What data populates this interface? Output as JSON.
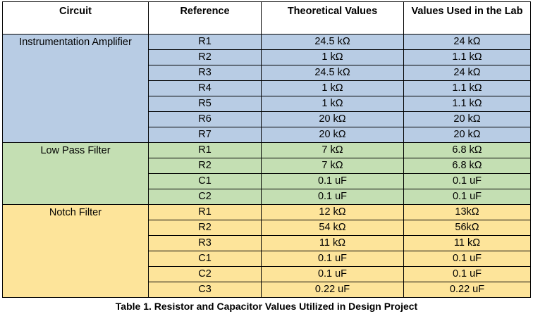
{
  "headers": {
    "circuit": "Circuit",
    "reference": "Reference",
    "theoretical": "Theoretical Values",
    "lab": "Values Used in the Lab"
  },
  "groups": [
    {
      "name": "Instrumentation Amplifier",
      "color": "#b8cce4",
      "rows": [
        {
          "ref": "R1",
          "theoretical": "24.5 kΩ",
          "lab": "24 kΩ"
        },
        {
          "ref": "R2",
          "theoretical": "1 kΩ",
          "lab": "1.1 kΩ"
        },
        {
          "ref": "R3",
          "theoretical": "24.5 kΩ",
          "lab": "24 kΩ"
        },
        {
          "ref": "R4",
          "theoretical": "1 kΩ",
          "lab": "1.1 kΩ"
        },
        {
          "ref": "R5",
          "theoretical": "1 kΩ",
          "lab": "1.1 kΩ"
        },
        {
          "ref": "R6",
          "theoretical": "20 kΩ",
          "lab": "20 kΩ"
        },
        {
          "ref": "R7",
          "theoretical": "20 kΩ",
          "lab": "20 kΩ"
        }
      ]
    },
    {
      "name": "Low Pass Filter",
      "color": "#c4dfb3",
      "rows": [
        {
          "ref": "R1",
          "theoretical": "7 kΩ",
          "lab": "6.8 kΩ"
        },
        {
          "ref": "R2",
          "theoretical": "7 kΩ",
          "lab": "6.8 kΩ"
        },
        {
          "ref": "C1",
          "theoretical": "0.1 uF",
          "lab": "0.1 uF"
        },
        {
          "ref": "C2",
          "theoretical": "0.1 uF",
          "lab": "0.1 uF"
        }
      ]
    },
    {
      "name": "Notch Filter",
      "color": "#fde49a",
      "rows": [
        {
          "ref": "R1",
          "theoretical": "12 kΩ",
          "lab": "13kΩ"
        },
        {
          "ref": "R2",
          "theoretical": "54 kΩ",
          "lab": "56kΩ"
        },
        {
          "ref": "R3",
          "theoretical": "11 kΩ",
          "lab": "11 kΩ"
        },
        {
          "ref": "C1",
          "theoretical": "0.1 uF",
          "lab": "0.1 uF"
        },
        {
          "ref": "C2",
          "theoretical": "0.1 uF",
          "lab": "0.1 uF"
        },
        {
          "ref": "C3",
          "theoretical": "0.22 uF",
          "lab": "0.22 uF"
        }
      ]
    }
  ],
  "caption": "Table 1. Resistor and Capacitor Values Utilized in Design Project"
}
